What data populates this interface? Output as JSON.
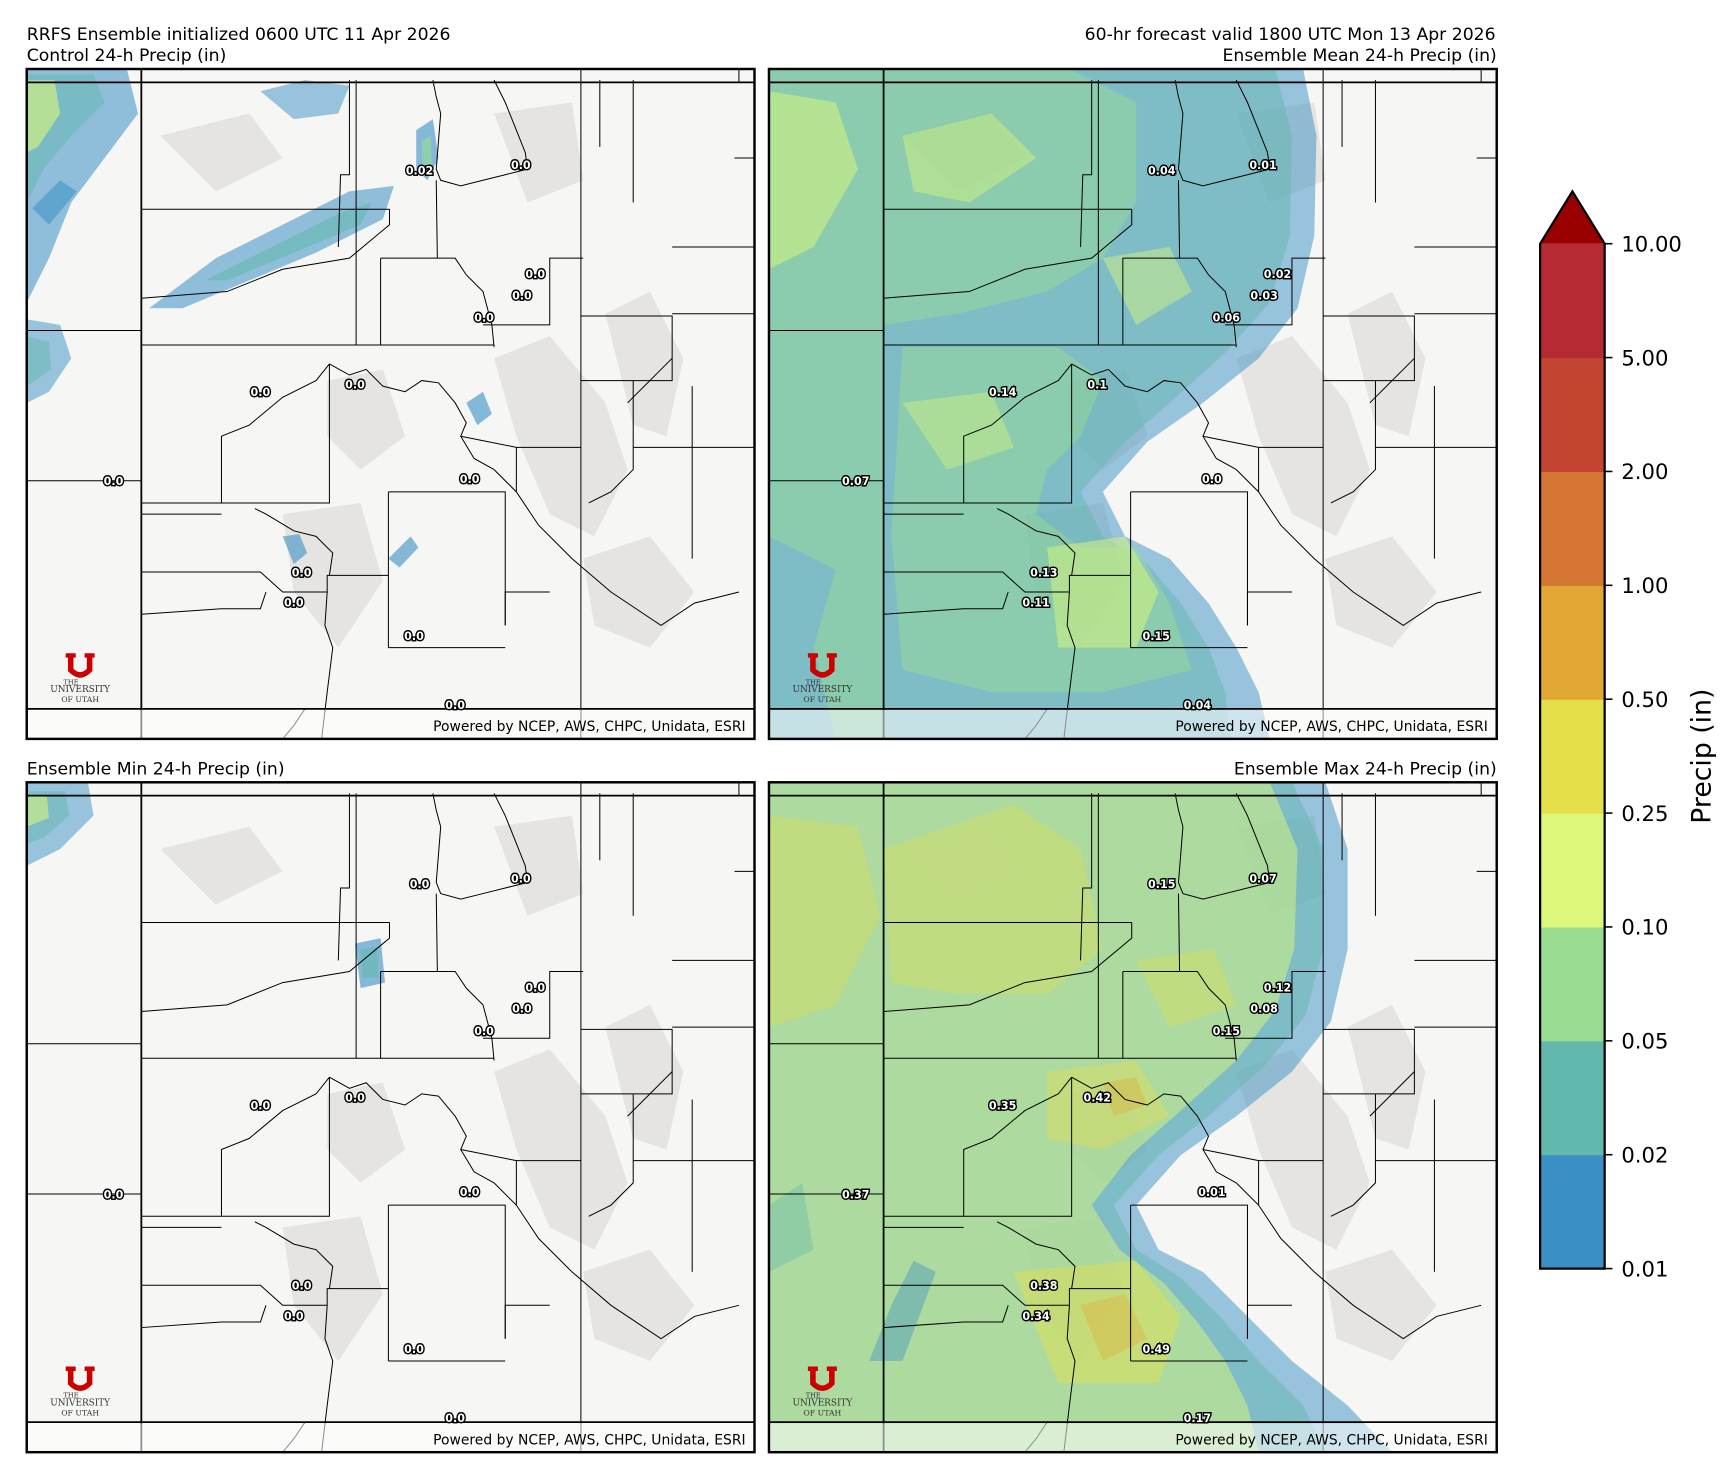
{
  "figure": {
    "init_title": "RRFS Ensemble initialized 0600 UTC 11 Apr 2026",
    "valid_title": "60-hr forecast valid 1800 UTC Mon 13 Apr 2026"
  },
  "panels": [
    {
      "title": "Control 24-h Precip (in)",
      "field": "control",
      "labels": [
        "0.02",
        "0.0",
        "0.0",
        "0.0",
        "0.0",
        "0.0",
        "0.0",
        "0.0",
        "0.0",
        "0.0",
        "0.0",
        "0.0",
        "0.0"
      ]
    },
    {
      "title": "Ensemble Mean 24-h Precip (in)",
      "field": "mean",
      "labels": [
        "0.04",
        "0.01",
        "0.02",
        "0.03",
        "0.06",
        "0.14",
        "0.1",
        "0.07",
        "0.0",
        "0.13",
        "0.11",
        "0.15",
        "0.04"
      ]
    },
    {
      "title": "Ensemble Min 24-h Precip (in)",
      "field": "min",
      "labels": [
        "0.0",
        "0.0",
        "0.0",
        "0.0",
        "0.0",
        "0.0",
        "0.0",
        "0.0",
        "0.0",
        "0.0",
        "0.0",
        "0.0",
        "0.0"
      ]
    },
    {
      "title": "Ensemble Max 24-h Precip (in)",
      "field": "max",
      "labels": [
        "0.15",
        "0.07",
        "0.12",
        "0.08",
        "0.15",
        "0.35",
        "0.42",
        "0.37",
        "0.01",
        "0.38",
        "0.34",
        "0.49",
        "0.17"
      ]
    }
  ],
  "credit": "Powered by NCEP, AWS, CHPC, Unidata, ESRI",
  "logo": {
    "line1": "THE",
    "line2": "UNIVERSITY",
    "line3": "OF UTAH",
    "mark": "U",
    "color": "#cc0000"
  },
  "colorbar": {
    "label": "Precip (in)",
    "ticks": [
      "0.01",
      "0.02",
      "0.05",
      "0.10",
      "0.25",
      "0.50",
      "1.00",
      "2.00",
      "5.00",
      "10.00"
    ],
    "colors": [
      "#3a8fc4",
      "#63b8ad",
      "#98dd91",
      "#dcf77a",
      "#e5df4a",
      "#e1a833",
      "#d57733",
      "#c44432",
      "#b52a33"
    ],
    "extend_color": "#990000",
    "extend": "max"
  }
}
